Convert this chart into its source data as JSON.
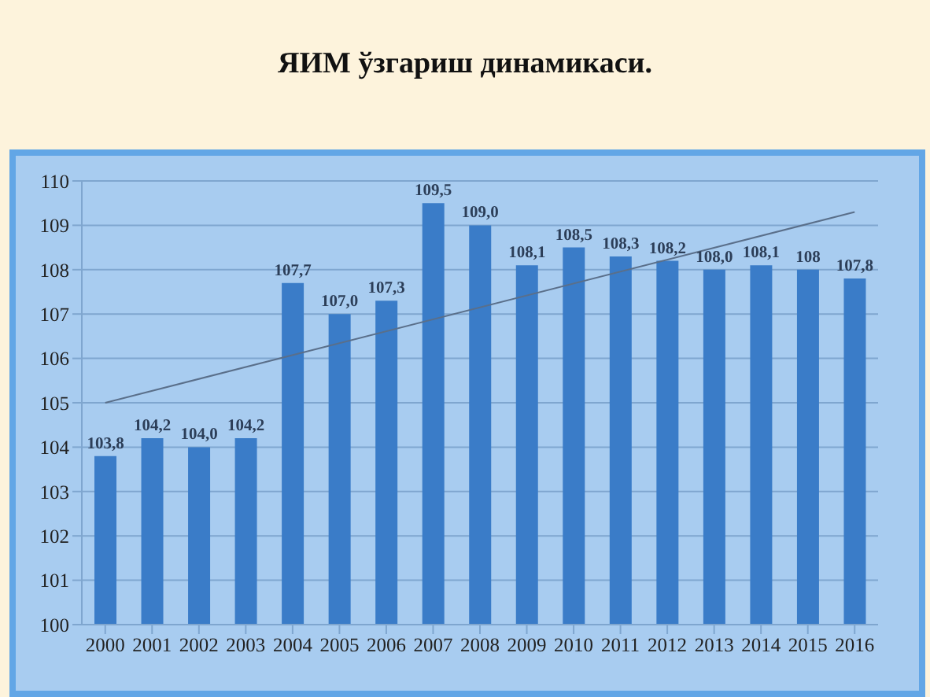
{
  "chart_data": {
    "type": "bar",
    "title": "ЯИМ ўзгариш динамикаси.",
    "categories": [
      "2000",
      "2001",
      "2002",
      "2003",
      "2004",
      "2005",
      "2006",
      "2007",
      "2008",
      "2009",
      "2010",
      "2011",
      "2012",
      "2013",
      "2014",
      "2015",
      "2016"
    ],
    "series": [
      {
        "color": "#3a7cc8",
        "values": [
          103.8,
          104.2,
          104.0,
          104.2,
          107.7,
          107.0,
          107.3,
          109.5,
          109.0,
          108.1,
          108.5,
          108.3,
          108.2,
          108.0,
          108.1,
          108,
          107.8
        ],
        "value_labels": [
          "103,8",
          "104,2",
          "104,0",
          "104,2",
          "107,7",
          "107,0",
          "107,3",
          "109,5",
          "109,0",
          "108,1",
          "108,5",
          "108,3",
          "108,2",
          "108,0",
          "108,1",
          "108",
          "107,8"
        ]
      },
      {
        "type": "line",
        "color": "#5a6f8a",
        "values": [
          105.0,
          null,
          null,
          null,
          null,
          null,
          null,
          null,
          null,
          null,
          null,
          null,
          null,
          null,
          null,
          null,
          109.3
        ]
      }
    ],
    "ylim": [
      100,
      110
    ],
    "yticks": [
      100,
      101,
      102,
      103,
      104,
      105,
      106,
      107,
      108,
      109,
      110
    ],
    "grid": "y",
    "legend": false
  }
}
